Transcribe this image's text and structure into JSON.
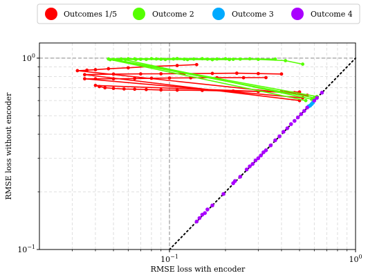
{
  "chart_data": {
    "type": "line",
    "xlabel": "RMSE loss with encoder",
    "ylabel": "RMSE loss without encoder",
    "xscale": "log",
    "yscale": "log",
    "xlim": [
      0.02,
      1.0
    ],
    "ylim": [
      0.1,
      1.2
    ],
    "grid": true,
    "legend_position": "top",
    "x_ticks": [
      {
        "value": 0.1,
        "base": "10",
        "exp": "−1"
      },
      {
        "value": 1.0,
        "base": "10",
        "exp": "0"
      }
    ],
    "y_ticks": [
      {
        "value": 0.1,
        "base": "10",
        "exp": "−1"
      },
      {
        "value": 1.0,
        "base": "10",
        "exp": "0"
      }
    ],
    "reference_lines": [
      {
        "kind": "diagonal",
        "style": "dotted",
        "color": "#000000"
      },
      {
        "kind": "vline",
        "x": 0.1,
        "style": "dashed",
        "color": "#888888"
      },
      {
        "kind": "hline",
        "y": 1.0,
        "style": "dashed",
        "color": "#888888"
      }
    ],
    "legend": [
      {
        "label": "Outcomes 1/5",
        "color": "#ff0000"
      },
      {
        "label": "Outcome 2",
        "color": "#55ff00"
      },
      {
        "label": "Outcome 3",
        "color": "#00aaff"
      },
      {
        "label": "Outcome 4",
        "color": "#aa00ff"
      }
    ],
    "series": [
      {
        "color": "#ff0000",
        "mode": "lines+markers",
        "paths": [
          [
            [
              0.55,
              0.64
            ],
            [
              0.032,
              0.86
            ],
            [
              0.036,
              0.865
            ],
            [
              0.04,
              0.87
            ],
            [
              0.047,
              0.88
            ],
            [
              0.06,
              0.89
            ],
            [
              0.08,
              0.905
            ],
            [
              0.11,
              0.915
            ],
            [
              0.14,
              0.925
            ]
          ],
          [
            [
              0.5,
              0.6
            ],
            [
              0.035,
              0.82
            ],
            [
              0.05,
              0.825
            ],
            [
              0.07,
              0.827
            ],
            [
              0.09,
              0.828
            ],
            [
              0.12,
              0.83
            ],
            [
              0.17,
              0.832
            ],
            [
              0.23,
              0.834
            ],
            [
              0.3,
              0.83
            ],
            [
              0.4,
              0.826
            ]
          ],
          [
            [
              0.52,
              0.62
            ],
            [
              0.035,
              0.78
            ],
            [
              0.04,
              0.78
            ],
            [
              0.05,
              0.78
            ],
            [
              0.065,
              0.782
            ],
            [
              0.08,
              0.785
            ],
            [
              0.1,
              0.787
            ],
            [
              0.13,
              0.789
            ],
            [
              0.18,
              0.79
            ],
            [
              0.25,
              0.79
            ],
            [
              0.33,
              0.791
            ]
          ],
          [
            [
              0.47,
              0.66
            ],
            [
              0.04,
              0.72
            ],
            [
              0.042,
              0.71
            ],
            [
              0.045,
              0.7
            ],
            [
              0.05,
              0.695
            ],
            [
              0.057,
              0.69
            ],
            [
              0.065,
              0.688
            ],
            [
              0.075,
              0.685
            ],
            [
              0.09,
              0.682
            ],
            [
              0.11,
              0.68
            ],
            [
              0.15,
              0.678
            ],
            [
              0.22,
              0.673
            ],
            [
              0.3,
              0.67
            ],
            [
              0.4,
              0.668
            ],
            [
              0.5,
              0.665
            ]
          ]
        ]
      },
      {
        "color": "#55ff00",
        "mode": "lines+markers",
        "paths": [
          [
            [
              0.6,
              0.62
            ],
            [
              0.047,
              0.99
            ],
            [
              0.06,
              0.992
            ],
            [
              0.08,
              0.993
            ],
            [
              0.11,
              0.994
            ],
            [
              0.15,
              0.993
            ],
            [
              0.2,
              0.992
            ],
            [
              0.27,
              0.991
            ],
            [
              0.37,
              0.988
            ]
          ],
          [
            [
              0.62,
              0.63
            ],
            [
              0.05,
              0.985
            ],
            [
              0.07,
              0.986
            ],
            [
              0.09,
              0.987
            ],
            [
              0.12,
              0.987
            ],
            [
              0.16,
              0.988
            ],
            [
              0.22,
              0.986
            ],
            [
              0.3,
              0.985
            ],
            [
              0.42,
              0.97
            ],
            [
              0.52,
              0.93
            ]
          ],
          [
            [
              0.58,
              0.61
            ],
            [
              0.055,
              0.99
            ],
            [
              0.065,
              0.991
            ],
            [
              0.085,
              0.99
            ],
            [
              0.105,
              0.99
            ],
            [
              0.135,
              0.989
            ],
            [
              0.18,
              0.989
            ],
            [
              0.24,
              0.988
            ]
          ],
          [
            [
              0.54,
              0.6
            ],
            [
              0.048,
              0.982
            ],
            [
              0.052,
              0.983
            ],
            [
              0.058,
              0.984
            ],
            [
              0.066,
              0.984
            ],
            [
              0.075,
              0.985
            ],
            [
              0.095,
              0.984
            ],
            [
              0.125,
              0.983
            ],
            [
              0.17,
              0.982
            ],
            [
              0.21,
              0.983
            ]
          ]
        ]
      },
      {
        "color": "#00aaff",
        "mode": "markers",
        "points": [
          [
            0.56,
            0.56
          ],
          [
            0.58,
            0.575
          ],
          [
            0.57,
            0.565
          ],
          [
            0.59,
            0.585
          ]
        ]
      },
      {
        "color": "#aa00ff",
        "mode": "markers",
        "points": [
          [
            0.14,
            0.14
          ],
          [
            0.145,
            0.146
          ],
          [
            0.15,
            0.152
          ],
          [
            0.155,
            0.155
          ],
          [
            0.16,
            0.162
          ],
          [
            0.17,
            0.17
          ],
          [
            0.195,
            0.195
          ],
          [
            0.22,
            0.222
          ],
          [
            0.225,
            0.228
          ],
          [
            0.24,
            0.24
          ],
          [
            0.26,
            0.262
          ],
          [
            0.27,
            0.272
          ],
          [
            0.28,
            0.28
          ],
          [
            0.29,
            0.292
          ],
          [
            0.3,
            0.3
          ],
          [
            0.31,
            0.31
          ],
          [
            0.32,
            0.322
          ],
          [
            0.33,
            0.33
          ],
          [
            0.35,
            0.35
          ],
          [
            0.37,
            0.372
          ],
          [
            0.39,
            0.39
          ],
          [
            0.41,
            0.412
          ],
          [
            0.43,
            0.43
          ],
          [
            0.45,
            0.452
          ],
          [
            0.47,
            0.47
          ],
          [
            0.49,
            0.49
          ],
          [
            0.51,
            0.51
          ],
          [
            0.53,
            0.53
          ],
          [
            0.55,
            0.552
          ],
          [
            0.6,
            0.6
          ],
          [
            0.62,
            0.62
          ],
          [
            0.66,
            0.66
          ]
        ]
      }
    ]
  }
}
